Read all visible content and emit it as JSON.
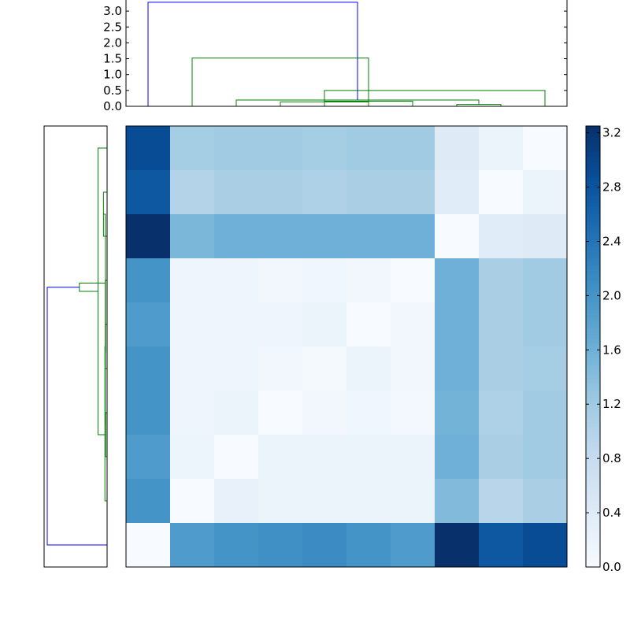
{
  "chart_data": [
    {
      "type": "dendrogram",
      "orientation": "top",
      "ylim": [
        0,
        3.35
      ],
      "ytick_labels": [
        "0.0",
        "0.5",
        "1.0",
        "1.5",
        "2.0",
        "2.5",
        "3.0"
      ],
      "colors": {
        "root": "#0000ff",
        "cluster": "#008000"
      },
      "leaf_count": 10,
      "links": [
        {
          "left": 7,
          "right": 8,
          "height": 0.06,
          "color": "cluster"
        },
        {
          "left": 3,
          "right": 5,
          "height": 0.14,
          "color": "cluster"
        },
        {
          "left": 4,
          "right": 6,
          "height": 0.16,
          "color": "cluster"
        },
        {
          "left": 2,
          "right": 10,
          "height": 0.2,
          "color": "cluster"
        },
        {
          "left": 9,
          "right": 11,
          "height": 0.5,
          "color": "cluster"
        },
        {
          "left": 1,
          "right": 12,
          "height": 1.52,
          "color": "cluster"
        },
        {
          "left": 0,
          "right": 13,
          "height": 3.28,
          "color": "root"
        }
      ]
    },
    {
      "type": "dendrogram",
      "orientation": "left",
      "colors": {
        "root": "#0000ff",
        "cluster": "#008000"
      },
      "leaf_count": 10,
      "links": [
        {
          "left": 1,
          "right": 2,
          "height": 0.2,
          "color": "cluster"
        },
        {
          "left": 6,
          "right": 7,
          "height": 0.08,
          "color": "cluster"
        },
        {
          "left": 4,
          "right": 5,
          "height": 0.1,
          "color": "cluster"
        },
        {
          "left": 12,
          "right": 8,
          "height": 0.12,
          "color": "cluster"
        },
        {
          "left": 3,
          "right": 13,
          "height": 0.1,
          "color": "cluster"
        },
        {
          "left": 10,
          "right": 14,
          "height": 0.09,
          "color": "cluster"
        },
        {
          "left": 0,
          "right": 11,
          "height": 0.5,
          "color": "cluster"
        },
        {
          "left": 15,
          "right": 16,
          "height": 1.52,
          "color": "cluster"
        },
        {
          "left": 17,
          "right": 9,
          "height": 3.28,
          "color": "root"
        }
      ]
    },
    {
      "type": "heatmap",
      "colormap": "Blues",
      "vmin": 0,
      "vmax": 3.25,
      "colormap_stops": [
        "#f7fbff",
        "#deebf7",
        "#c6dbef",
        "#9ecae1",
        "#6baed6",
        "#4292c6",
        "#2171b5",
        "#08519c",
        "#08306b"
      ],
      "values": [
        [
          2.9,
          1.15,
          1.2,
          1.2,
          1.15,
          1.2,
          1.2,
          0.4,
          0.2,
          0.0
        ],
        [
          2.75,
          1.0,
          1.1,
          1.1,
          1.05,
          1.1,
          1.1,
          0.38,
          0.0,
          0.2
        ],
        [
          3.25,
          1.5,
          1.6,
          1.6,
          1.6,
          1.6,
          1.6,
          0.0,
          0.38,
          0.4
        ],
        [
          2.0,
          0.15,
          0.15,
          0.1,
          0.12,
          0.1,
          0.0,
          1.6,
          1.1,
          1.2
        ],
        [
          1.9,
          0.15,
          0.15,
          0.15,
          0.2,
          0.0,
          0.1,
          1.6,
          1.1,
          1.2
        ],
        [
          2.0,
          0.15,
          0.15,
          0.1,
          0.05,
          0.18,
          0.1,
          1.6,
          1.1,
          1.15
        ],
        [
          2.0,
          0.15,
          0.18,
          0.0,
          0.1,
          0.12,
          0.08,
          1.55,
          1.05,
          1.2
        ],
        [
          1.9,
          0.16,
          0.0,
          0.2,
          0.2,
          0.18,
          0.2,
          1.6,
          1.1,
          1.2
        ],
        [
          2.0,
          0.0,
          0.25,
          0.2,
          0.2,
          0.2,
          0.2,
          1.45,
          0.95,
          1.1
        ],
        [
          0.0,
          1.9,
          2.0,
          2.05,
          2.1,
          2.0,
          1.9,
          3.25,
          2.75,
          2.9
        ]
      ],
      "colorbar": {
        "ticks": [
          0.0,
          0.4,
          0.8,
          1.2,
          1.6,
          2.0,
          2.4,
          2.8,
          3.2
        ],
        "tick_labels": [
          "0.0",
          "0.4",
          "0.8",
          "1.2",
          "1.6",
          "2.0",
          "2.4",
          "2.8",
          "3.2"
        ]
      }
    }
  ]
}
